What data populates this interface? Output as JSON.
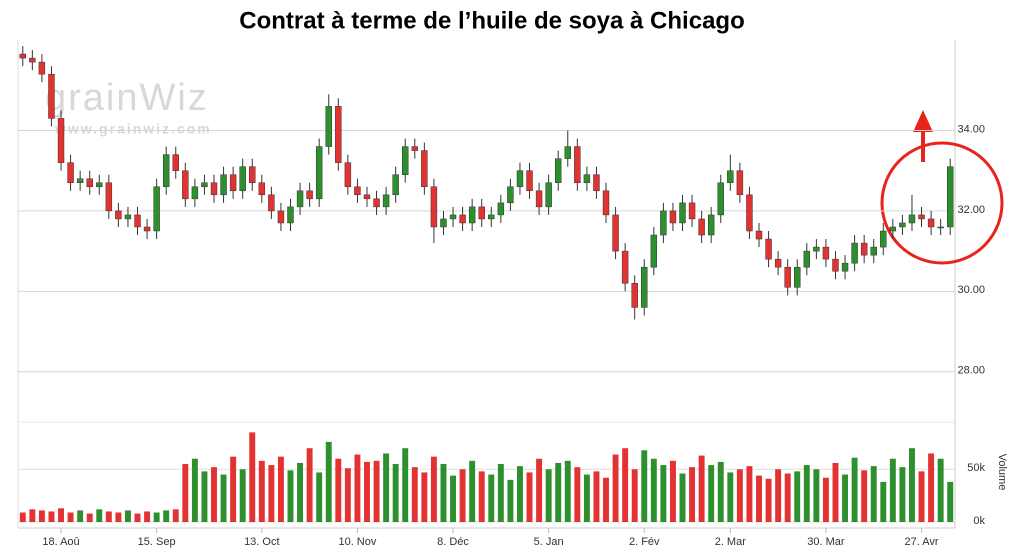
{
  "chart_data": {
    "type": "candlestick",
    "title": "Contrat à terme de l’huile de soya à Chicago",
    "watermark": {
      "logo": "grainWiz",
      "url": "www.grainwiz.com"
    },
    "categories": [
      null,
      null,
      null,
      null,
      "18. Aoû",
      null,
      null,
      null,
      null,
      null,
      null,
      null,
      null,
      null,
      "15. Sep",
      null,
      null,
      null,
      null,
      null,
      null,
      null,
      null,
      null,
      null,
      "13. Oct",
      null,
      null,
      null,
      null,
      null,
      null,
      null,
      null,
      null,
      "10. Nov",
      null,
      null,
      null,
      null,
      null,
      null,
      null,
      null,
      null,
      "8. Déc",
      null,
      null,
      null,
      null,
      null,
      null,
      null,
      null,
      null,
      "5. Jan",
      null,
      null,
      null,
      null,
      null,
      null,
      null,
      null,
      null,
      "2. Fév",
      null,
      null,
      null,
      null,
      null,
      null,
      null,
      null,
      "2. Mar",
      null,
      null,
      null,
      null,
      null,
      null,
      null,
      null,
      null,
      "30. Mar",
      null,
      null,
      null,
      null,
      null,
      null,
      null,
      null,
      null,
      "27. Avr",
      null,
      null,
      null
    ],
    "open": [
      35.9,
      35.8,
      35.7,
      35.4,
      34.3,
      33.2,
      32.7,
      32.8,
      32.6,
      32.7,
      32.0,
      31.8,
      31.9,
      31.6,
      31.5,
      32.6,
      33.4,
      33.0,
      32.3,
      32.6,
      32.7,
      32.4,
      32.9,
      32.5,
      33.1,
      32.7,
      32.4,
      32.0,
      31.7,
      32.1,
      32.5,
      32.3,
      33.6,
      34.6,
      33.2,
      32.6,
      32.4,
      32.3,
      32.1,
      32.4,
      32.9,
      33.6,
      33.5,
      32.6,
      31.6,
      31.8,
      31.9,
      31.7,
      32.1,
      31.8,
      31.9,
      32.2,
      32.6,
      33.0,
      32.5,
      32.1,
      32.7,
      33.3,
      33.6,
      32.7,
      32.9,
      32.5,
      31.9,
      31.0,
      30.2,
      29.6,
      30.6,
      31.4,
      32.0,
      31.7,
      32.2,
      31.8,
      31.4,
      31.9,
      32.7,
      33.0,
      32.4,
      31.5,
      31.3,
      30.8,
      30.6,
      30.1,
      30.6,
      31.0,
      31.1,
      30.8,
      30.5,
      30.7,
      31.2,
      30.9,
      31.1,
      31.5,
      31.6,
      31.7,
      31.9,
      31.8,
      31.6,
      31.6
    ],
    "high": [
      36.1,
      36.0,
      35.9,
      35.6,
      34.5,
      33.4,
      33.0,
      33.0,
      32.9,
      32.9,
      32.2,
      32.1,
      32.1,
      31.8,
      32.8,
      33.6,
      33.6,
      33.2,
      32.8,
      32.9,
      32.9,
      33.1,
      33.1,
      33.3,
      33.3,
      32.9,
      32.6,
      32.2,
      32.3,
      32.7,
      32.7,
      33.8,
      34.9,
      34.8,
      33.4,
      32.8,
      32.6,
      32.5,
      32.6,
      33.1,
      33.8,
      33.8,
      33.7,
      32.8,
      32.0,
      32.1,
      32.1,
      32.3,
      32.3,
      32.1,
      32.4,
      32.8,
      33.2,
      33.2,
      32.7,
      32.9,
      33.5,
      34.0,
      33.8,
      33.1,
      33.1,
      32.7,
      32.1,
      31.2,
      30.4,
      30.8,
      31.6,
      32.2,
      32.2,
      32.4,
      32.4,
      32.0,
      32.1,
      32.9,
      33.4,
      33.2,
      32.6,
      31.7,
      31.5,
      31.0,
      30.8,
      30.8,
      31.2,
      31.3,
      31.3,
      31.0,
      30.9,
      31.4,
      31.4,
      31.3,
      31.7,
      31.8,
      31.9,
      32.4,
      32.1,
      32.0,
      31.8,
      33.3
    ],
    "low": [
      35.6,
      35.5,
      35.2,
      34.1,
      33.0,
      32.5,
      32.5,
      32.4,
      32.4,
      31.8,
      31.6,
      31.6,
      31.4,
      31.3,
      31.3,
      32.4,
      32.8,
      32.1,
      32.1,
      32.4,
      32.2,
      32.2,
      32.3,
      32.3,
      32.5,
      32.2,
      31.8,
      31.5,
      31.5,
      31.9,
      32.1,
      32.1,
      33.4,
      33.0,
      32.4,
      32.2,
      32.1,
      31.9,
      31.9,
      32.2,
      32.7,
      33.3,
      32.4,
      31.2,
      31.4,
      31.6,
      31.5,
      31.5,
      31.6,
      31.6,
      31.7,
      32.0,
      32.4,
      32.3,
      31.9,
      31.9,
      32.5,
      33.1,
      32.5,
      32.5,
      32.3,
      31.7,
      30.8,
      30.0,
      29.3,
      29.4,
      30.4,
      31.2,
      31.5,
      31.5,
      31.6,
      31.2,
      31.2,
      31.7,
      32.5,
      32.2,
      31.3,
      31.1,
      30.6,
      30.4,
      29.9,
      29.9,
      30.4,
      30.8,
      30.6,
      30.3,
      30.3,
      30.5,
      30.7,
      30.7,
      30.9,
      31.3,
      31.4,
      31.5,
      31.6,
      31.4,
      31.4,
      31.4
    ],
    "close": [
      35.8,
      35.7,
      35.4,
      34.3,
      33.2,
      32.7,
      32.8,
      32.6,
      32.7,
      32.0,
      31.8,
      31.9,
      31.6,
      31.5,
      32.6,
      33.4,
      33.0,
      32.3,
      32.6,
      32.7,
      32.4,
      32.9,
      32.5,
      33.1,
      32.7,
      32.4,
      32.0,
      31.7,
      32.1,
      32.5,
      32.3,
      33.6,
      34.6,
      33.2,
      32.6,
      32.4,
      32.3,
      32.1,
      32.4,
      32.9,
      33.6,
      33.5,
      32.6,
      31.6,
      31.8,
      31.9,
      31.7,
      32.1,
      31.8,
      31.9,
      32.2,
      32.6,
      33.0,
      32.5,
      32.1,
      32.7,
      33.3,
      33.6,
      32.7,
      32.9,
      32.5,
      31.9,
      31.0,
      30.2,
      29.6,
      30.6,
      31.4,
      32.0,
      31.7,
      32.2,
      31.8,
      31.4,
      31.9,
      32.7,
      33.0,
      32.4,
      31.5,
      31.3,
      30.8,
      30.6,
      30.1,
      30.6,
      31.0,
      31.1,
      30.8,
      30.5,
      30.7,
      31.2,
      30.9,
      31.1,
      31.5,
      31.6,
      31.7,
      31.9,
      31.8,
      31.6,
      31.6,
      33.1
    ],
    "volume": [
      9000,
      12000,
      11000,
      10000,
      13000,
      9000,
      11000,
      8000,
      12000,
      10000,
      9000,
      11000,
      8000,
      10000,
      9000,
      11000,
      12000,
      55000,
      60000,
      48000,
      52000,
      45000,
      62000,
      50000,
      85000,
      58000,
      54000,
      62000,
      49000,
      56000,
      70000,
      47000,
      76000,
      60000,
      51000,
      64000,
      57000,
      58000,
      65000,
      55000,
      70000,
      52000,
      47000,
      62000,
      55000,
      44000,
      50000,
      58000,
      48000,
      45000,
      55000,
      40000,
      53000,
      47000,
      60000,
      50000,
      56000,
      58000,
      52000,
      45000,
      48000,
      42000,
      64000,
      70000,
      50000,
      68000,
      60000,
      54000,
      58000,
      46000,
      52000,
      63000,
      54000,
      57000,
      47000,
      50000,
      53000,
      44000,
      41000,
      50000,
      46000,
      48000,
      54000,
      50000,
      42000,
      56000,
      45000,
      61000,
      49000,
      53000,
      38000,
      60000,
      52000,
      70000,
      48000,
      65000,
      60000,
      38000
    ],
    "up_color": "#2e8f2e",
    "down_color": "#e33232",
    "ylim": [
      26.8,
      36.25
    ],
    "yticks": [
      {
        "value": 28,
        "label": "28.00"
      },
      {
        "value": 30,
        "label": "30.00"
      },
      {
        "value": 32,
        "label": "32.00"
      },
      {
        "value": 34,
        "label": "34.00"
      }
    ],
    "volume_label": "Volume",
    "volume_ylim": [
      0,
      92000
    ],
    "volume_yticks": [
      {
        "value": 0,
        "label": "0k"
      },
      {
        "value": 50000,
        "label": "50k"
      }
    ],
    "grid": true
  }
}
